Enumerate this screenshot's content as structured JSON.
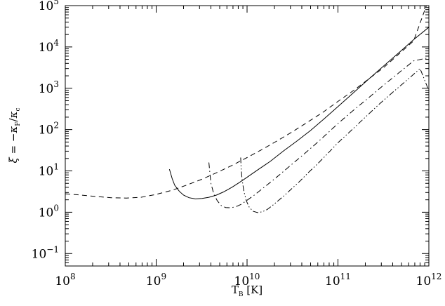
{
  "chart_data": {
    "type": "line",
    "title": "",
    "xlabel": "T_B [K]",
    "ylabel": "ξ = −κ_F/κ_c",
    "xscale": "log",
    "yscale": "log",
    "xlim": [
      100000000.0,
      1000000000000.0
    ],
    "ylim": [
      0.05,
      100000.0
    ],
    "grid": false,
    "legend": "none",
    "x_ticks": [
      {
        "value": 100000000.0,
        "base": "10",
        "exp": "8"
      },
      {
        "value": 1000000000.0,
        "base": "10",
        "exp": "9"
      },
      {
        "value": 10000000000.0,
        "base": "10",
        "exp": "10"
      },
      {
        "value": 100000000000.0,
        "base": "10",
        "exp": "11"
      },
      {
        "value": 1000000000000.0,
        "base": "10",
        "exp": "12"
      }
    ],
    "y_ticks": [
      {
        "value": 0.1,
        "base": "10",
        "exp": "−1"
      },
      {
        "value": 1,
        "base": "10",
        "exp": "0"
      },
      {
        "value": 10,
        "base": "10",
        "exp": "1"
      },
      {
        "value": 100,
        "base": "10",
        "exp": "2"
      },
      {
        "value": 1000,
        "base": "10",
        "exp": "3"
      },
      {
        "value": 10000,
        "base": "10",
        "exp": "4"
      },
      {
        "value": 100000,
        "base": "10",
        "exp": "5"
      }
    ],
    "series": [
      {
        "style": "dashed",
        "x": [
          100000000.0,
          150000000.0,
          220000000.0,
          320000000.0,
          470000000.0,
          680000000.0,
          1000000000.0,
          1500000000.0,
          2200000000.0,
          3200000000.0,
          4600000000.0,
          6800000000.0,
          10000000000.0,
          15000000000.0,
          22000000000.0,
          32000000000.0,
          46000000000.0,
          68000000000.0,
          100000000000.0,
          150000000000.0,
          220000000000.0,
          320000000000.0,
          460000000000.0,
          680000000000.0,
          940000000000.0
        ],
        "y": [
          2.8,
          2.6,
          2.4,
          2.25,
          2.2,
          2.3,
          2.7,
          3.4,
          4.6,
          6.3,
          9.0,
          13.5,
          21,
          34,
          55,
          90,
          150,
          260,
          480,
          900,
          1700,
          3200,
          6500,
          14000,
          100000
        ]
      },
      {
        "style": "solid",
        "x": [
          1400000000.0,
          1500000000.0,
          1600000000.0,
          1800000000.0,
          2000000000.0,
          2300000000.0,
          2700000000.0,
          3200000000.0,
          3800000000.0,
          4600000000.0,
          5500000000.0,
          6800000000.0,
          8200000000.0,
          10000000000.0,
          13000000000.0,
          18000000000.0,
          25000000000.0,
          35000000000.0,
          50000000000.0,
          70000000000.0,
          100000000000.0,
          150000000000.0,
          220000000000.0,
          320000000000.0,
          460000000000.0,
          680000000000.0,
          1000000000000.0
        ],
        "y": [
          11,
          6.5,
          4.5,
          3.2,
          2.6,
          2.25,
          2.1,
          2.15,
          2.3,
          2.6,
          3.1,
          4.0,
          5.2,
          7.0,
          10.5,
          17,
          30,
          52,
          95,
          180,
          360,
          800,
          1700,
          3500,
          7000,
          15000,
          30000
        ]
      },
      {
        "style": "dash-dot",
        "x": [
          3800000000.0,
          3900000000.0,
          4000000000.0,
          4300000000.0,
          4700000000.0,
          5200000000.0,
          5800000000.0,
          6600000000.0,
          7500000000.0,
          8600000000.0,
          10000000000.0,
          12000000000.0,
          14500000000.0,
          18000000000.0,
          23000000000.0,
          30000000000.0,
          40000000000.0,
          55000000000.0,
          75000000000.0,
          100000000000.0,
          150000000000.0,
          220000000000.0,
          320000000000.0,
          460000000000.0,
          680000000000.0,
          1000000000000.0
        ],
        "y": [
          16,
          9,
          5,
          2.8,
          1.9,
          1.45,
          1.3,
          1.28,
          1.35,
          1.55,
          1.95,
          2.6,
          3.6,
          5.3,
          8.2,
          13.5,
          23,
          42,
          78,
          140,
          300,
          600,
          1200,
          2300,
          4600,
          5500
        ]
      },
      {
        "style": "dash-dot-dot",
        "x": [
          8500000000.0,
          8600000000.0,
          8800000000.0,
          9200000000.0,
          9800000000.0,
          10600000000.0,
          11700000000.0,
          13000000000.0,
          14600000000.0,
          16500000000.0,
          19000000000.0,
          22000000000.0,
          26000000000.0,
          31000000000.0,
          38000000000.0,
          47000000000.0,
          60000000000.0,
          78000000000.0,
          100000000000.0,
          140000000000.0,
          200000000000.0,
          280000000000.0,
          400000000000.0,
          560000000000.0,
          800000000000.0,
          1000000000000.0
        ],
        "y": [
          21,
          12,
          6.5,
          3.3,
          1.9,
          1.3,
          1.05,
          0.98,
          1.02,
          1.15,
          1.45,
          1.9,
          2.6,
          3.7,
          5.6,
          9,
          15,
          27,
          48,
          95,
          200,
          400,
          800,
          1500,
          3000,
          870
        ]
      }
    ]
  }
}
